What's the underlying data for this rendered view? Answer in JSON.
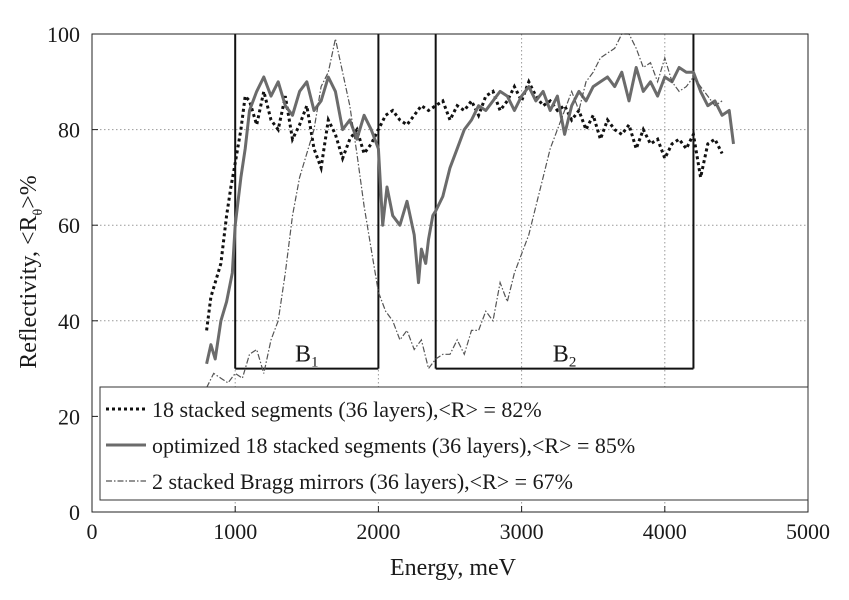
{
  "chart_data": {
    "type": "line",
    "xlabel": "Energy, meV",
    "ylabel": "Reflectivity, <R",
    "ylabel_sub": "θ",
    "ylabel_suffix": ">%",
    "xlim": [
      0,
      5000
    ],
    "ylim": [
      0,
      100
    ],
    "xticks": [
      0,
      1000,
      2000,
      3000,
      4000,
      5000
    ],
    "yticks": [
      0,
      20,
      40,
      60,
      80,
      100
    ],
    "grid": true,
    "legend_position": "bottom-left",
    "series": [
      {
        "name": "18 stacked segments (36 layers),<R> = 82%",
        "style": "dotted",
        "color": "#111111",
        "x": [
          800,
          830,
          860,
          900,
          940,
          970,
          1000,
          1040,
          1070,
          1100,
          1150,
          1200,
          1250,
          1300,
          1350,
          1400,
          1450,
          1500,
          1550,
          1600,
          1650,
          1700,
          1750,
          1800,
          1850,
          1900,
          1950,
          2000,
          2050,
          2100,
          2150,
          2200,
          2250,
          2300,
          2350,
          2400,
          2450,
          2500,
          2550,
          2600,
          2650,
          2700,
          2750,
          2800,
          2850,
          2900,
          2950,
          3000,
          3050,
          3100,
          3150,
          3200,
          3250,
          3300,
          3350,
          3400,
          3450,
          3500,
          3550,
          3600,
          3650,
          3700,
          3750,
          3800,
          3850,
          3900,
          3950,
          4000,
          4050,
          4100,
          4150,
          4200,
          4250,
          4300,
          4350,
          4400
        ],
        "values": [
          38,
          45,
          48,
          52,
          62,
          68,
          73,
          80,
          87,
          86,
          81,
          88,
          82,
          80,
          87,
          78,
          81,
          85,
          76,
          72,
          82,
          79,
          74,
          78,
          80,
          75,
          77,
          80,
          83,
          84,
          82,
          81,
          83,
          85,
          84,
          85,
          86,
          82,
          85,
          84,
          86,
          83,
          87,
          88,
          84,
          86,
          89,
          86,
          90,
          87,
          85,
          86,
          84,
          85,
          82,
          84,
          80,
          83,
          78,
          82,
          80,
          79,
          81,
          76,
          80,
          77,
          78,
          74,
          77,
          78,
          76,
          79,
          70,
          77,
          78,
          75
        ]
      },
      {
        "name": "optimized 18  stacked segments (36 layers),<R> = 85%",
        "style": "solid",
        "color": "#6b6b6b",
        "x": [
          800,
          830,
          860,
          900,
          940,
          980,
          1000,
          1040,
          1070,
          1100,
          1150,
          1200,
          1250,
          1300,
          1350,
          1400,
          1450,
          1500,
          1550,
          1600,
          1650,
          1700,
          1750,
          1800,
          1850,
          1900,
          1950,
          2000,
          2030,
          2060,
          2100,
          2150,
          2200,
          2250,
          2280,
          2300,
          2330,
          2350,
          2380,
          2400,
          2450,
          2500,
          2550,
          2600,
          2650,
          2700,
          2750,
          2800,
          2850,
          2900,
          2950,
          3000,
          3050,
          3100,
          3150,
          3200,
          3250,
          3300,
          3350,
          3400,
          3450,
          3500,
          3550,
          3600,
          3650,
          3700,
          3750,
          3800,
          3850,
          3900,
          3950,
          4000,
          4050,
          4100,
          4150,
          4200,
          4250,
          4300,
          4350,
          4400,
          4450,
          4480
        ],
        "values": [
          31,
          35,
          32,
          40,
          44,
          50,
          60,
          70,
          76,
          84,
          88,
          91,
          87,
          90,
          85,
          83,
          88,
          90,
          84,
          86,
          91,
          88,
          80,
          82,
          78,
          83,
          80,
          76,
          60,
          68,
          62,
          60,
          65,
          58,
          48,
          55,
          52,
          57,
          62,
          63,
          66,
          72,
          76,
          80,
          82,
          85,
          84,
          86,
          88,
          87,
          84,
          87,
          89,
          86,
          88,
          84,
          87,
          79,
          85,
          88,
          86,
          89,
          90,
          91,
          89,
          92,
          86,
          93,
          88,
          90,
          87,
          91,
          90,
          93,
          92,
          92,
          88,
          85,
          86,
          83,
          84,
          77
        ]
      },
      {
        "name": "2 stacked Bragg mirrors (36 layers),<R> = 67%",
        "style": "dashdot",
        "color": "#555555",
        "x": [
          800,
          850,
          900,
          950,
          1000,
          1050,
          1100,
          1150,
          1200,
          1250,
          1300,
          1350,
          1400,
          1450,
          1500,
          1550,
          1600,
          1650,
          1700,
          1750,
          1800,
          1850,
          1900,
          1950,
          2000,
          2050,
          2100,
          2150,
          2200,
          2250,
          2300,
          2350,
          2400,
          2450,
          2500,
          2550,
          2600,
          2650,
          2700,
          2750,
          2800,
          2850,
          2900,
          2950,
          3000,
          3050,
          3100,
          3150,
          3200,
          3250,
          3300,
          3350,
          3400,
          3450,
          3500,
          3550,
          3600,
          3650,
          3700,
          3750,
          3800,
          3850,
          3900,
          3950,
          4000,
          4050,
          4100,
          4150,
          4200,
          4250,
          4300,
          4350,
          4400
        ],
        "values": [
          26,
          29,
          28,
          27,
          29,
          28,
          33,
          34,
          29,
          36,
          40,
          50,
          62,
          70,
          75,
          80,
          89,
          92,
          99,
          92,
          85,
          75,
          64,
          55,
          46,
          42,
          40,
          36,
          38,
          34,
          36,
          30,
          32,
          33,
          33,
          36,
          33,
          38,
          38,
          42,
          40,
          48,
          44,
          50,
          54,
          58,
          64,
          70,
          76,
          80,
          84,
          88,
          84,
          90,
          92,
          95,
          96,
          97,
          100,
          100,
          97,
          93,
          94,
          90,
          95,
          90,
          88,
          89,
          91,
          89,
          87,
          85,
          86
        ]
      }
    ],
    "bands": [
      {
        "label": "B",
        "sub": "1",
        "x0": 1000,
        "x1": 2000,
        "y": 30
      },
      {
        "label": "B",
        "sub": "2",
        "x0": 2400,
        "x1": 4200,
        "y": 30
      }
    ]
  }
}
